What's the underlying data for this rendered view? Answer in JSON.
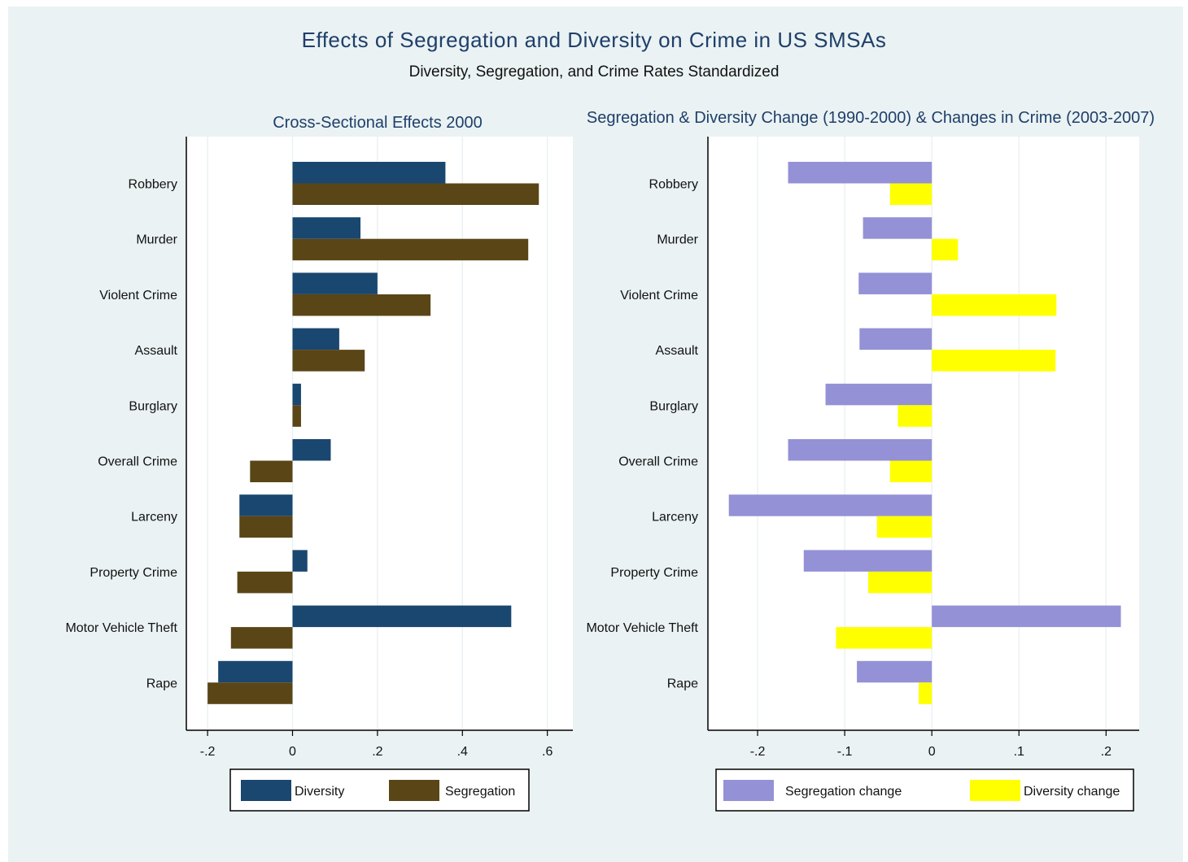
{
  "title": "Effects of Segregation and Diversity on Crime in US SMSAs",
  "subtitle": "Diversity, Segregation, and Crime Rates Standardized",
  "chart_data": [
    {
      "type": "bar",
      "orientation": "horizontal",
      "title": "Cross-Sectional Effects 2000",
      "categories": [
        "Robbery",
        "Murder",
        "Violent Crime",
        "Assault",
        "Burglary",
        "Overall Crime",
        "Larceny",
        "Property Crime",
        "Motor Vehicle Theft",
        "Rape"
      ],
      "series": [
        {
          "name": "Diversity",
          "color": "#1a476f",
          "values": [
            0.36,
            0.16,
            0.2,
            0.11,
            0.02,
            0.09,
            -0.125,
            0.035,
            0.515,
            -0.175
          ]
        },
        {
          "name": "Segregation",
          "color": "#5a4516",
          "values": [
            0.58,
            0.555,
            0.325,
            0.17,
            0.02,
            -0.1,
            -0.125,
            -0.13,
            -0.145,
            -0.2
          ]
        }
      ],
      "xlim": [
        -0.25,
        0.66
      ],
      "xticks": [
        -0.2,
        0,
        0.2,
        0.4,
        0.6
      ],
      "xtick_labels": [
        "-.2",
        "0",
        ".2",
        ".4",
        ".6"
      ],
      "grid": true,
      "legend_position": "bottom"
    },
    {
      "type": "bar",
      "orientation": "horizontal",
      "title": "Segregation & Diversity Change (1990-2000) & Changes in Crime (2003-2007)",
      "categories": [
        "Robbery",
        "Murder",
        "Violent Crime",
        "Assault",
        "Burglary",
        "Overall Crime",
        "Larceny",
        "Property Crime",
        "Motor Vehicle Theft",
        "Rape"
      ],
      "series": [
        {
          "name": "Segregation change",
          "color": "#9491d6",
          "values": [
            -0.165,
            -0.079,
            -0.084,
            -0.083,
            -0.122,
            -0.165,
            -0.233,
            -0.147,
            0.217,
            -0.086
          ]
        },
        {
          "name": "Diversity change",
          "color": "#ffff00",
          "values": [
            -0.048,
            0.03,
            0.143,
            0.142,
            -0.039,
            -0.048,
            -0.063,
            -0.073,
            -0.11,
            -0.015
          ]
        }
      ],
      "xlim": [
        -0.257,
        0.238
      ],
      "xticks": [
        -0.2,
        -0.1,
        0,
        0.1,
        0.2
      ],
      "xtick_labels": [
        "-.2",
        "-.1",
        "0",
        ".1",
        ".2"
      ],
      "grid": true,
      "legend_position": "bottom"
    }
  ]
}
